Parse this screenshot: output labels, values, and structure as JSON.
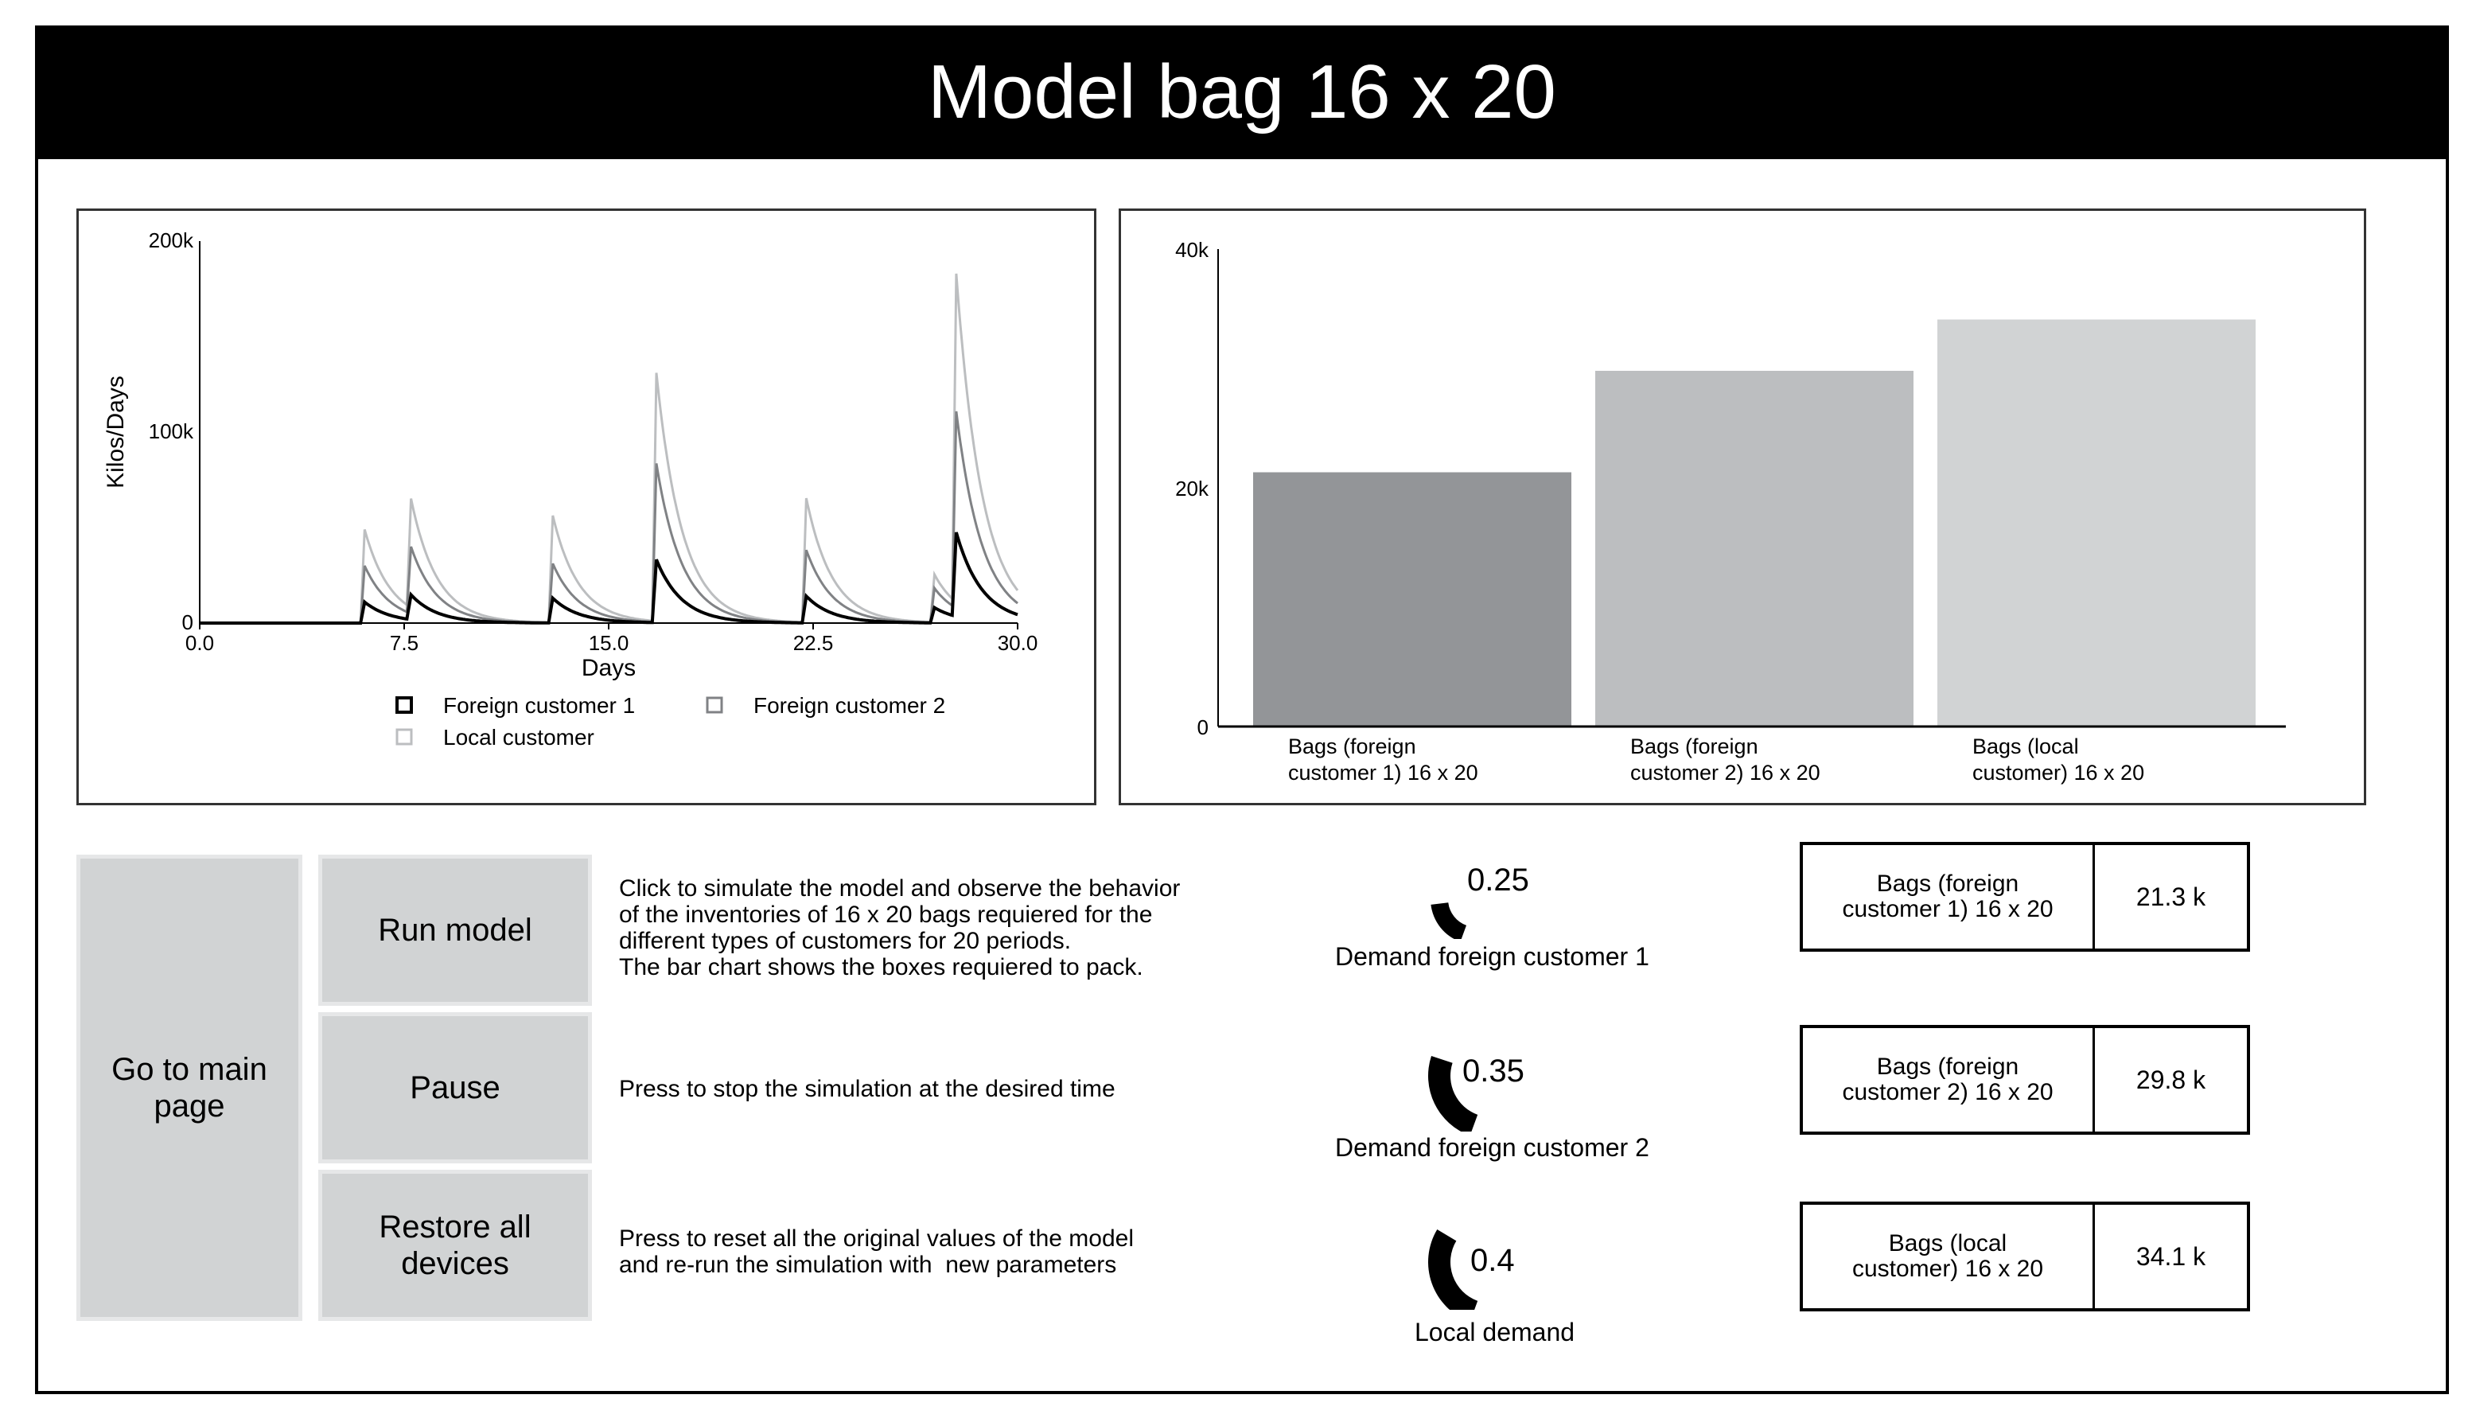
{
  "title": "Model bag 16 x 20",
  "line_chart": {
    "chart_data": {
      "type": "line",
      "xlabel": "Days",
      "ylabel": "Kilos/Days",
      "xlim": [
        0,
        30
      ],
      "ylim": [
        0,
        200000
      ],
      "xticks": [
        "0.0",
        "7.5",
        "15.0",
        "22.5",
        "30.0"
      ],
      "yticks": [
        "0",
        "100k",
        "200k"
      ],
      "legend_position": "bottom",
      "spikes": [
        5.9,
        7.6,
        12.8,
        16.6,
        22.1,
        26.8,
        27.6
      ],
      "series": [
        {
          "name": "Foreign customer 1",
          "color": "#000000",
          "peaks": [
            11000,
            13000,
            13000,
            33000,
            14000,
            8000,
            44000
          ]
        },
        {
          "name": "Foreign customer 2",
          "color": "#808285",
          "peaks": [
            30000,
            35000,
            31000,
            83000,
            38000,
            18000,
            103000
          ]
        },
        {
          "name": "Local customer",
          "color": "#bcbec0",
          "peaks": [
            49000,
            57000,
            56000,
            130000,
            65000,
            25000,
            172000
          ]
        }
      ]
    }
  },
  "bar_chart": {
    "chart_data": {
      "type": "bar",
      "categories": [
        "Bags (foreign\ncustomer 1) 16 x 20",
        "Bags (foreign\ncustomer 2) 16 x 20",
        "Bags (local\ncustomer) 16 x 20"
      ],
      "values": [
        21300,
        29800,
        34100
      ],
      "colors": [
        "#939598",
        "#bcbec0",
        "#d1d3d4"
      ],
      "ylim": [
        0,
        40000
      ],
      "yticks": [
        "0",
        "20k",
        "40k"
      ]
    }
  },
  "buttons": {
    "main_page": "Go to main page",
    "run": "Run model",
    "pause": "Pause",
    "restore": "Restore all devices"
  },
  "descriptions": {
    "run": "Click to simulate the model and observe the behavior\nof the inventories of 16 x 20 bags requiered for the\ndifferent types of customers for 20 periods.\nThe bar chart shows the boxes requiered to pack.",
    "pause": "Press to stop the simulation at the desired time",
    "restore": "Press to reset all the original values of the model\nand re-run the simulation with  new parameters"
  },
  "gauges": [
    {
      "label": "Demand foreign customer 1",
      "value": "0.25",
      "fraction": 0.25
    },
    {
      "label": "Demand foreign customer 2",
      "value": "0.35",
      "fraction": 0.35
    },
    {
      "label": "Local demand",
      "value": "0.4",
      "fraction": 0.4
    }
  ],
  "outputs": [
    {
      "label": "Bags (foreign\ncustomer 1) 16 x 20",
      "value": "21.3 k"
    },
    {
      "label": "Bags (foreign\ncustomer 2) 16 x 20",
      "value": "29.8 k"
    },
    {
      "label": "Bags (local\ncustomer) 16 x 20",
      "value": "34.1 k"
    }
  ]
}
